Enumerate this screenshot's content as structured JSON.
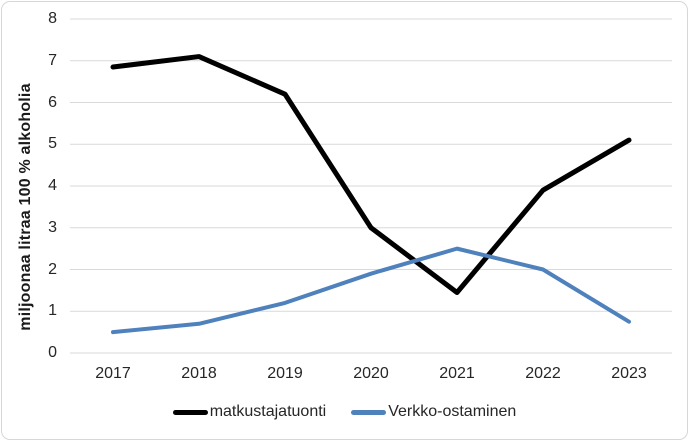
{
  "chart_data": {
    "type": "line",
    "title": "",
    "xlabel": "",
    "ylabel": "miljoonaa litraa 100 % alkoholia",
    "categories": [
      "2017",
      "2018",
      "2019",
      "2020",
      "2021",
      "2022",
      "2023"
    ],
    "series": [
      {
        "name": "matkustajatuonti",
        "color": "#000000",
        "values": [
          6.85,
          7.1,
          6.2,
          3.0,
          1.45,
          3.9,
          5.1
        ]
      },
      {
        "name": "Verkko-ostaminen",
        "color": "#4f81bd",
        "values": [
          0.5,
          0.7,
          1.2,
          1.9,
          2.5,
          2.0,
          0.75
        ]
      }
    ],
    "ylim": [
      0,
      8
    ],
    "yticks": [
      0,
      1,
      2,
      3,
      4,
      5,
      6,
      7,
      8
    ],
    "grid": true,
    "legend_position": "bottom",
    "colors": {
      "gridline": "#d9d9d9",
      "frame_border": "#d7d7d7",
      "text": "#262626",
      "background": "#ffffff"
    }
  }
}
